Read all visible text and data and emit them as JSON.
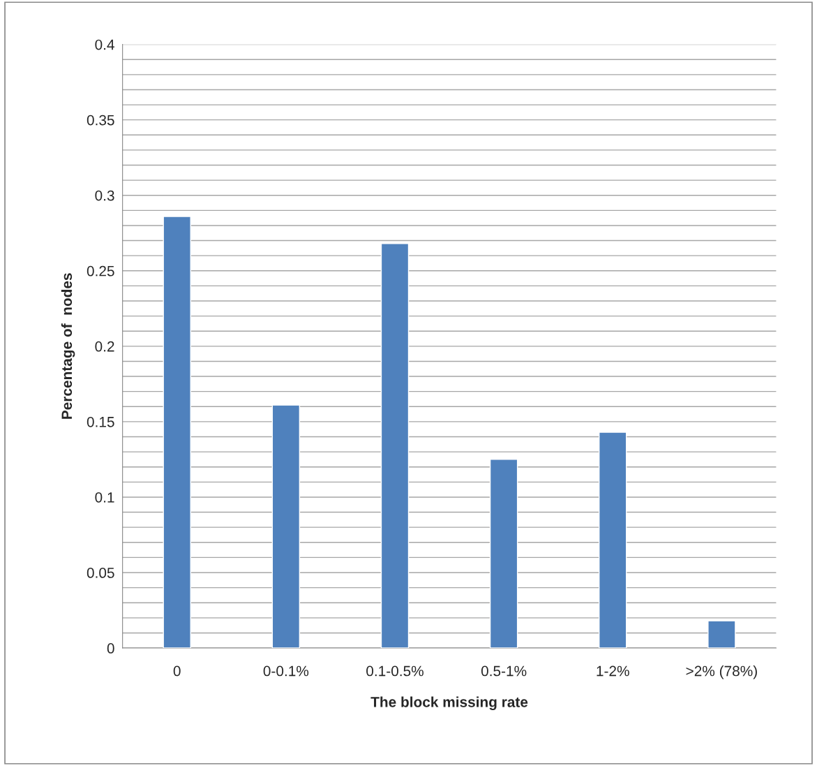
{
  "chart_data": {
    "type": "bar",
    "xlabel": "The block missing rate",
    "ylabel": "Percentage of  nodes",
    "categories": [
      "0",
      "0-0.1%",
      "0.1-0.5%",
      "0.5-1%",
      "1-2%",
      ">2% (78%)"
    ],
    "values": [
      0.286,
      0.161,
      0.268,
      0.125,
      0.143,
      0.018
    ],
    "color": "#4f81bd",
    "ylim": [
      0,
      0.4
    ],
    "yticks": [
      0,
      {
        "value": 0.01,
        "label": null
      },
      {
        "value": 0.02,
        "label": null
      },
      {
        "value": 0.03,
        "label": null
      },
      {
        "value": 0.04,
        "label": null
      },
      0.05,
      {
        "value": 0.06,
        "label": null
      },
      {
        "value": 0.07,
        "label": null
      },
      {
        "value": 0.08,
        "label": null
      },
      {
        "value": 0.09,
        "label": null
      },
      0.1,
      {
        "value": 0.11,
        "label": null
      },
      {
        "value": 0.12,
        "label": null
      },
      {
        "value": 0.13,
        "label": null
      },
      {
        "value": 0.14,
        "label": null
      },
      0.15,
      {
        "value": 0.16,
        "label": null
      },
      {
        "value": 0.17,
        "label": null
      },
      {
        "value": 0.18,
        "label": null
      },
      {
        "value": 0.19,
        "label": null
      },
      0.2,
      {
        "value": 0.21,
        "label": null
      },
      {
        "value": 0.22,
        "label": null
      },
      {
        "value": 0.23,
        "label": null
      },
      {
        "value": 0.24,
        "label": null
      },
      0.25,
      {
        "value": 0.26,
        "label": null
      },
      {
        "value": 0.27,
        "label": null
      },
      {
        "value": 0.28,
        "label": null
      },
      {
        "value": 0.29,
        "label": null
      },
      0.3,
      {
        "value": 0.31,
        "label": null
      },
      {
        "value": 0.32,
        "label": null
      },
      {
        "value": 0.33,
        "label": null
      },
      {
        "value": 0.34,
        "label": null
      },
      0.35,
      {
        "value": 0.36,
        "label": null
      },
      {
        "value": 0.37,
        "label": null
      },
      {
        "value": 0.38,
        "label": null
      },
      {
        "value": 0.39,
        "label": null
      },
      0.4
    ],
    "grid": "y",
    "legend": false
  }
}
